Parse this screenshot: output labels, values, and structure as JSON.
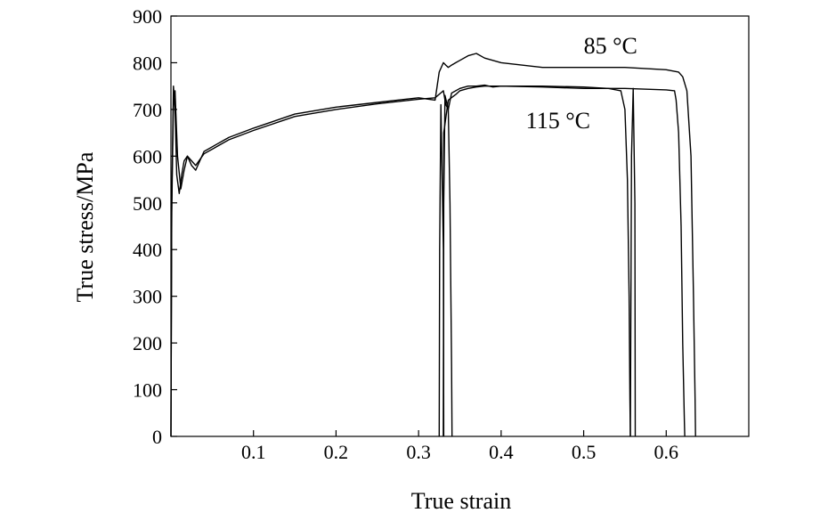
{
  "chart_data": {
    "type": "line",
    "xlabel": "True strain",
    "ylabel": "True stress/MPa",
    "xlim": [
      0,
      0.7
    ],
    "ylim": [
      0,
      900
    ],
    "x_ticks": [
      0.1,
      0.2,
      0.3,
      0.4,
      0.5,
      0.6
    ],
    "x_tick_labels": [
      "0.1",
      "0.2",
      "0.3",
      "0.4",
      "0.5",
      "0.6"
    ],
    "y_ticks": [
      0,
      100,
      200,
      300,
      400,
      500,
      600,
      700,
      800,
      900
    ],
    "y_tick_labels": [
      "0",
      "100",
      "200",
      "300",
      "400",
      "500",
      "600",
      "700",
      "800",
      "900"
    ],
    "grid": false,
    "line_color": "#000000",
    "annotations": [
      {
        "text": "85 °C",
        "x": 0.5,
        "y": 820
      },
      {
        "text": "115 °C",
        "x": 0.43,
        "y": 660
      }
    ],
    "series": [
      {
        "x": [
          0,
          0.001,
          0.003,
          0.005,
          0.007,
          0.01,
          0.013,
          0.016,
          0.02,
          0.025,
          0.03,
          0.04,
          0.05,
          0.07,
          0.1,
          0.15,
          0.2,
          0.25,
          0.3,
          0.32,
          0.325,
          0.33,
          0.333,
          0.336,
          0.34,
          0.345,
          0.35,
          0.36,
          0.37,
          0.38,
          0.39,
          0.4,
          0.45,
          0.5,
          0.55,
          0.6,
          0.615,
          0.62,
          0.625,
          0.63,
          0.633,
          0.635,
          0.6355
        ],
        "y": [
          0,
          500,
          750,
          700,
          560,
          520,
          560,
          590,
          600,
          580,
          570,
          610,
          620,
          640,
          660,
          690,
          705,
          715,
          725,
          720,
          780,
          800,
          795,
          790,
          795,
          800,
          805,
          815,
          820,
          810,
          805,
          800,
          790,
          790,
          790,
          785,
          780,
          770,
          740,
          600,
          300,
          80,
          0
        ]
      },
      {
        "x": [
          0,
          0.001,
          0.003,
          0.005,
          0.008,
          0.012,
          0.016,
          0.02,
          0.025,
          0.03,
          0.04,
          0.05,
          0.07,
          0.1,
          0.15,
          0.2,
          0.25,
          0.3,
          0.32,
          0.33,
          0.333,
          0.336,
          0.34,
          0.35,
          0.36,
          0.37,
          0.38,
          0.39,
          0.4,
          0.45,
          0.5,
          0.55,
          0.6,
          0.61,
          0.612,
          0.615,
          0.618,
          0.62,
          0.622,
          0.6225
        ],
        "y": [
          0,
          480,
          720,
          740,
          600,
          530,
          570,
          600,
          590,
          580,
          605,
          615,
          635,
          655,
          685,
          700,
          712,
          722,
          725,
          740,
          710,
          700,
          735,
          745,
          750,
          750,
          752,
          748,
          750,
          748,
          745,
          745,
          742,
          740,
          720,
          650,
          450,
          200,
          30,
          0
        ]
      },
      {
        "x": [
          0.325,
          0.3255,
          0.327,
          0.33,
          0.3305
        ],
        "y": [
          0,
          400,
          710,
          400,
          0
        ]
      },
      {
        "x": [
          0.33,
          0.3305,
          0.332,
          0.336,
          0.338,
          0.34,
          0.3405
        ],
        "y": [
          0,
          500,
          730,
          700,
          500,
          150,
          0
        ]
      },
      {
        "x": [
          0.33,
          0.3305,
          0.336,
          0.345,
          0.35,
          0.36,
          0.37,
          0.38,
          0.4,
          0.45,
          0.5,
          0.53,
          0.545,
          0.55,
          0.553,
          0.555,
          0.556,
          0.5565
        ],
        "y": [
          0,
          650,
          720,
          732,
          740,
          745,
          748,
          750,
          750,
          750,
          748,
          745,
          740,
          700,
          550,
          300,
          80,
          0
        ]
      },
      {
        "x": [
          0.5565,
          0.558,
          0.56,
          0.562,
          0.5625
        ],
        "y": [
          0,
          600,
          745,
          500,
          0
        ]
      }
    ]
  }
}
